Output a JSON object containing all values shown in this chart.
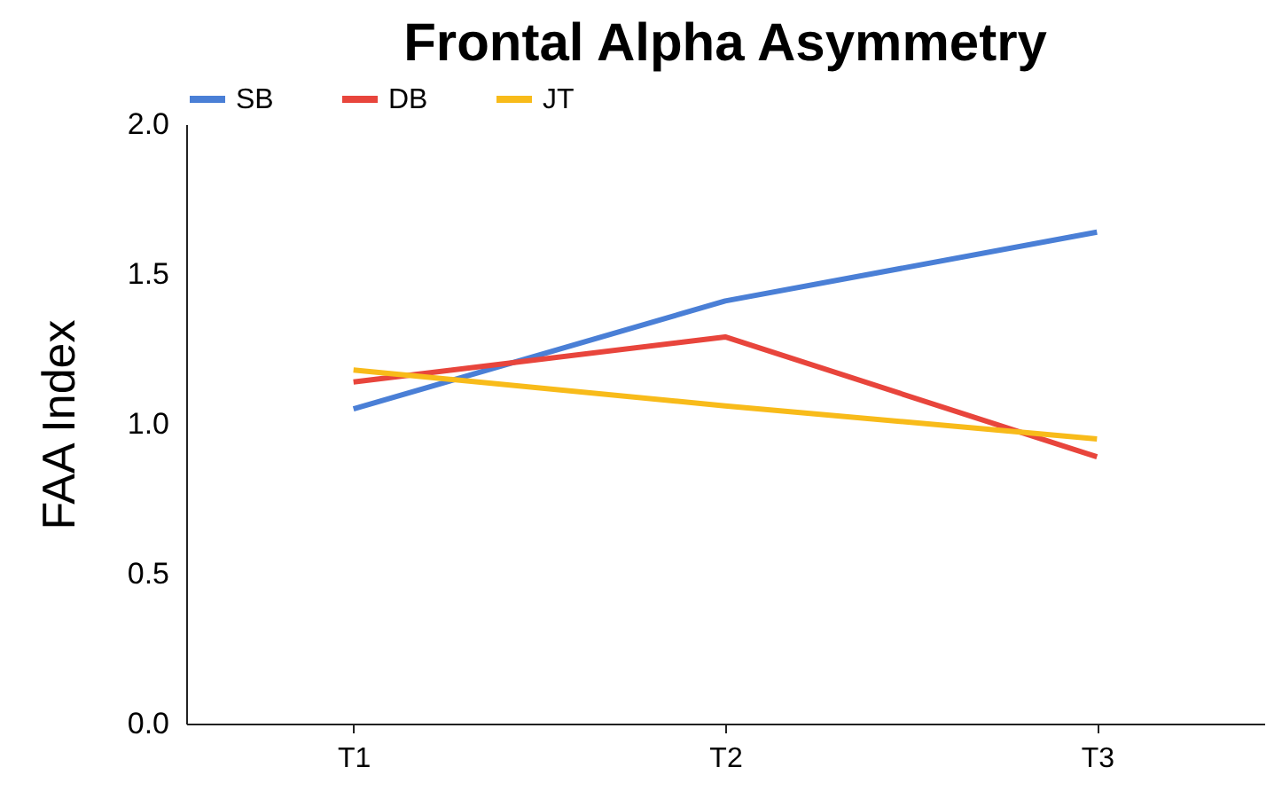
{
  "chart_data": {
    "type": "line",
    "title": "Frontal Alpha Asymmetry",
    "ylabel": "FAA Index",
    "categories": [
      "T1",
      "T2",
      "T3"
    ],
    "series": [
      {
        "name": "SB",
        "color": "#4a7fd6",
        "values": [
          1.05,
          1.41,
          1.64
        ]
      },
      {
        "name": "DB",
        "color": "#e8453c",
        "values": [
          1.14,
          1.29,
          0.89
        ]
      },
      {
        "name": "JT",
        "color": "#f8bb1a",
        "values": [
          1.18,
          1.06,
          0.95
        ]
      }
    ],
    "ylim": [
      0,
      2
    ],
    "yticks": [
      {
        "value": 0,
        "label": "0.0"
      },
      0.5,
      {
        "value": 1,
        "label": "1.0"
      },
      1.5,
      {
        "value": 2,
        "label": "2.0"
      }
    ],
    "grid": false,
    "legend": "top",
    "marker": "none",
    "line_style": "solid"
  }
}
